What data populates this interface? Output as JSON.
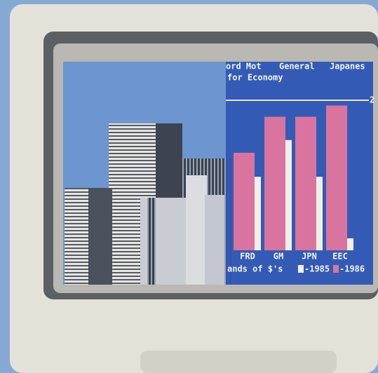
{
  "chart_data": {
    "type": "bar",
    "header_labels": [
      "ord Mot",
      "General",
      "Japanes"
    ],
    "title": "for Economy",
    "categories": [
      "FRD",
      "GM",
      "JPN",
      "EEC"
    ],
    "series": [
      {
        "name": "-1985",
        "color": "#f2efe6",
        "values": [
          0.98,
          1.47,
          0.98,
          0.16
        ]
      },
      {
        "name": "-1986",
        "color": "#d9749f",
        "values": [
          1.3,
          1.78,
          1.78,
          1.93
        ]
      }
    ],
    "legend_title": "ands of $'s",
    "ylim": [
      0,
      2
    ],
    "yticks": [
      2
    ],
    "grid": true
  }
}
